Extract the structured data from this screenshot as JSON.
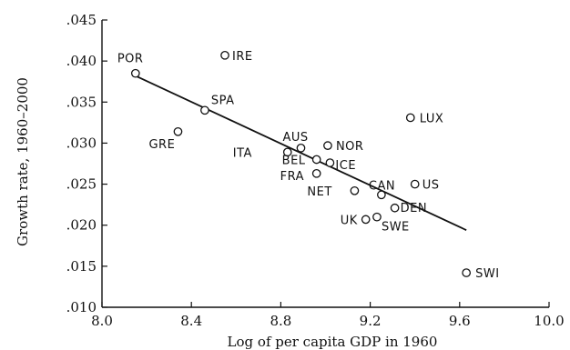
{
  "chart_data": {
    "type": "scatter",
    "xlabel": "Log of per capita GDP in 1960",
    "ylabel": "Growth rate, 1960–2000",
    "xlim": [
      8.0,
      10.0
    ],
    "ylim": [
      0.01,
      0.045
    ],
    "x_ticks": [
      8.0,
      8.4,
      8.8,
      9.2,
      9.6,
      10.0
    ],
    "x_tick_labels": [
      "8.0",
      "8.4",
      "8.8",
      "9.2",
      "9.6",
      "10.0"
    ],
    "y_ticks": [
      0.01,
      0.015,
      0.02,
      0.025,
      0.03,
      0.035,
      0.04,
      0.045
    ],
    "y_tick_labels": [
      ".010",
      ".015",
      ".020",
      ".025",
      ".030",
      ".035",
      ".040",
      ".045"
    ],
    "grid": false,
    "points": [
      {
        "label": "POR",
        "x": 8.15,
        "y": 0.0385
      },
      {
        "label": "IRE",
        "x": 8.55,
        "y": 0.0407
      },
      {
        "label": "SPA",
        "x": 8.46,
        "y": 0.034
      },
      {
        "label": "GRE",
        "x": 8.34,
        "y": 0.0314
      },
      {
        "label": "LUX",
        "x": 9.38,
        "y": 0.0331
      },
      {
        "label": "AUS",
        "x": 8.89,
        "y": 0.0294
      },
      {
        "label": "NOR",
        "x": 9.01,
        "y": 0.0297
      },
      {
        "label": "ITA",
        "x": 8.83,
        "y": 0.0289
      },
      {
        "label": "BEL",
        "x": 8.96,
        "y": 0.028
      },
      {
        "label": "ICE",
        "x": 9.02,
        "y": 0.0276
      },
      {
        "label": "FRA",
        "x": 8.96,
        "y": 0.0263
      },
      {
        "label": "CAN",
        "x": 9.25,
        "y": 0.0237
      },
      {
        "label": "US",
        "x": 9.4,
        "y": 0.025
      },
      {
        "label": "NET",
        "x": 9.13,
        "y": 0.0242
      },
      {
        "label": "DEN",
        "x": 9.31,
        "y": 0.0221
      },
      {
        "label": "UK",
        "x": 9.18,
        "y": 0.0207
      },
      {
        "label": "SWE",
        "x": 9.23,
        "y": 0.021
      },
      {
        "label": "SWI",
        "x": 9.63,
        "y": 0.0142
      }
    ],
    "trend_line": {
      "x": [
        8.15,
        9.63
      ],
      "y": [
        0.0382,
        0.0194
      ]
    }
  }
}
